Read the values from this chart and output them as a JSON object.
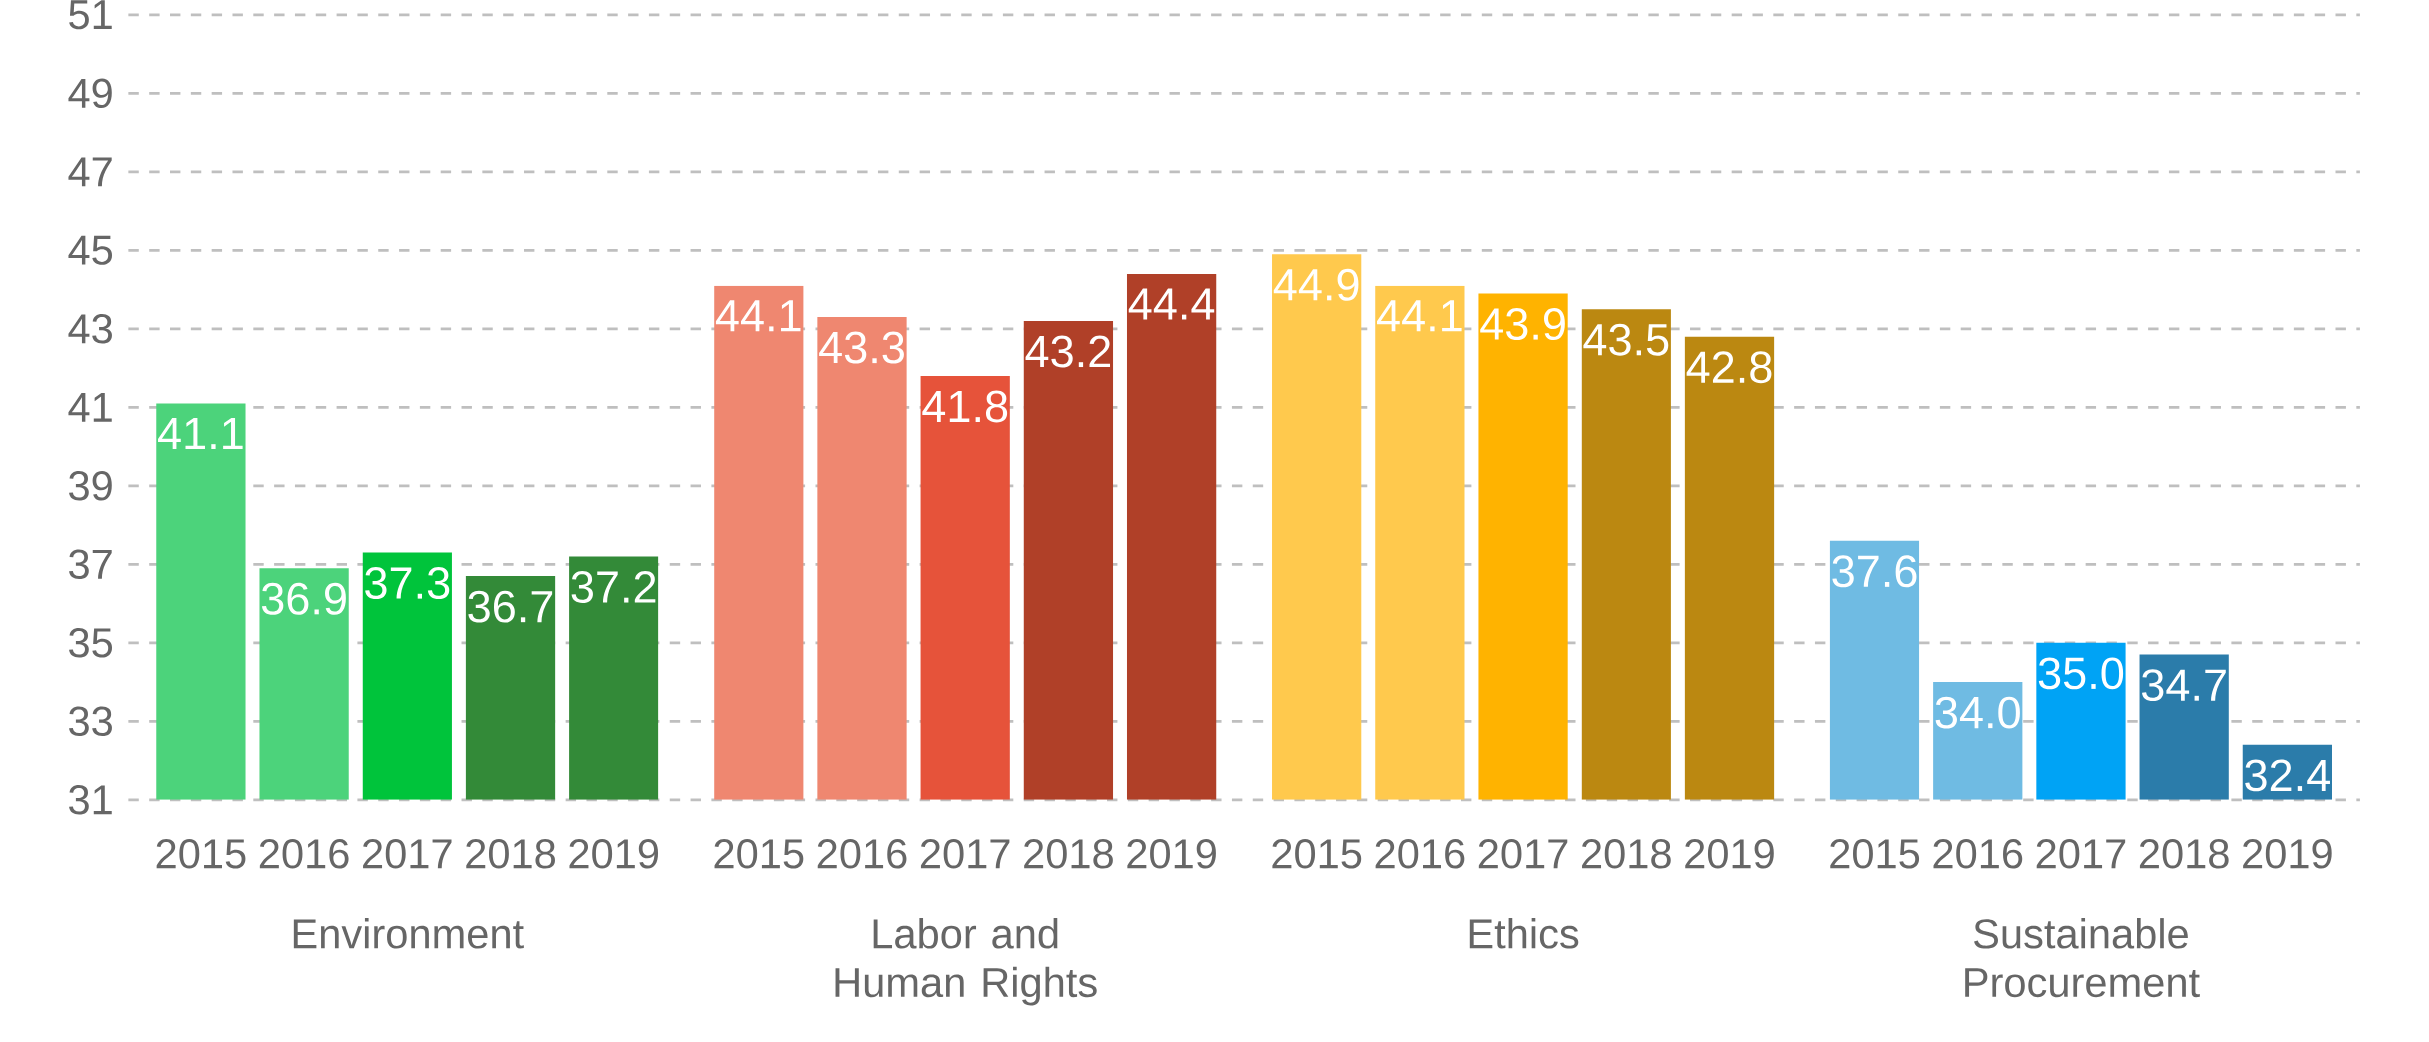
{
  "chart_data": {
    "type": "bar",
    "categories": [
      "Environment",
      "Labor and Human Rights",
      "Ethics",
      "Sustainable Procurement"
    ],
    "ylim": [
      31,
      51
    ],
    "yticks": [
      31,
      33,
      35,
      37,
      39,
      41,
      43,
      45,
      47,
      49,
      51
    ],
    "grid": "y",
    "series": [
      {
        "name": "2015",
        "colors": [
          "#4cd37b",
          "#ef8770",
          "#ffc94d",
          "#6fbbe3"
        ],
        "values": [
          41.1,
          44.1,
          44.9,
          37.6
        ],
        "value_labels": [
          "41.1",
          "44.1",
          "44.9",
          "37.6"
        ]
      },
      {
        "name": "2016",
        "colors": [
          "#4cd37b",
          "#ef8770",
          "#ffc94d",
          "#6fbbe3"
        ],
        "values": [
          36.9,
          43.3,
          44.1,
          34.0
        ],
        "value_labels": [
          "36.9",
          "43.3",
          "44.1",
          "34.0"
        ]
      },
      {
        "name": "2017",
        "colors": [
          "#00c43b",
          "#e6533a",
          "#ffb300",
          "#00a3f5"
        ],
        "values": [
          37.3,
          41.8,
          43.9,
          35.0
        ],
        "value_labels": [
          "37.3",
          "41.8",
          "43.9",
          "35.0"
        ]
      },
      {
        "name": "2018",
        "colors": [
          "#338a38",
          "#b04028",
          "#bb8811",
          "#2b7caa"
        ],
        "values": [
          36.7,
          43.2,
          43.5,
          34.7
        ],
        "value_labels": [
          "36.7",
          "43.2",
          "43.5",
          "34.7"
        ]
      },
      {
        "name": "2019",
        "colors": [
          "#338a38",
          "#b04028",
          "#bb8811",
          "#2b7caa"
        ],
        "values": [
          37.2,
          44.4,
          42.8,
          32.4
        ],
        "value_labels": [
          "37.2",
          "44.4",
          "42.8",
          "32.4"
        ]
      }
    ]
  }
}
